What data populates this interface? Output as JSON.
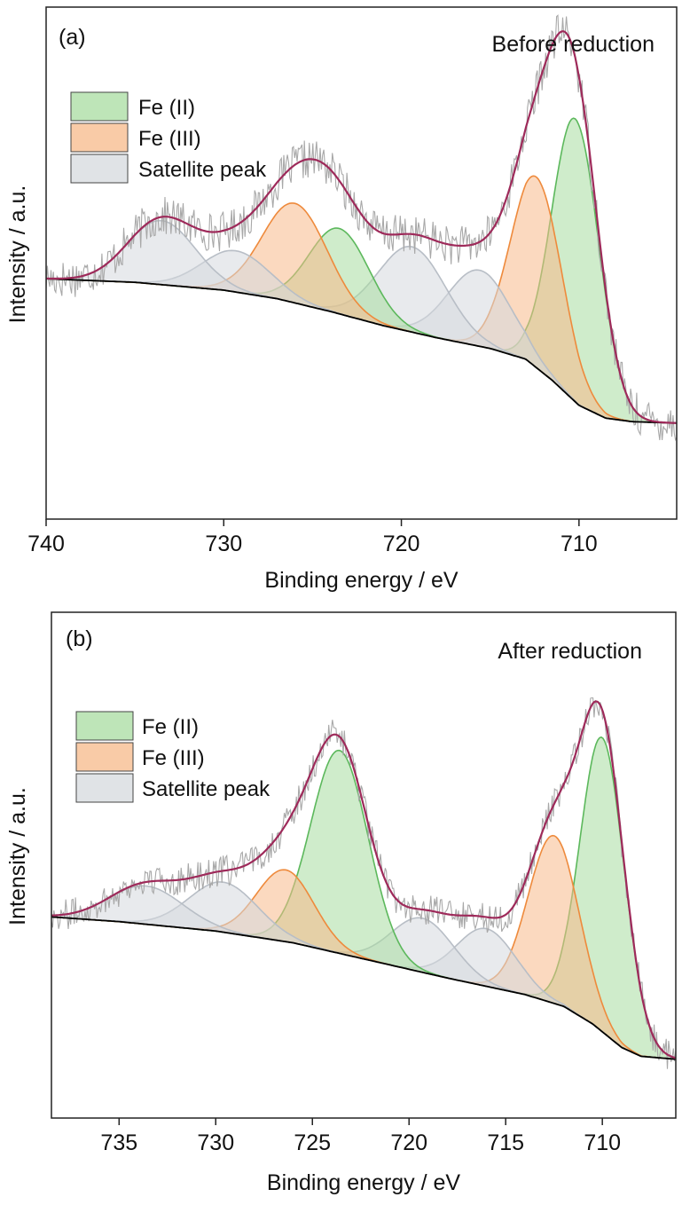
{
  "colors": {
    "fe2_fill": "#a8dca0",
    "fe2_stroke": "#5cb85c",
    "fe3_fill": "#f7b98a",
    "fe3_stroke": "#ee8a3c",
    "sat_fill": "#d5d9de",
    "sat_stroke": "#b8bec6",
    "envelope": "#9e2a5a",
    "raw": "#a8a8a8",
    "baseline": "#000000"
  },
  "chart_data": [
    {
      "type": "line",
      "panel_label": "(a)",
      "annotation": "Before reduction",
      "xlabel": "Binding energy / eV",
      "ylabel": "Intensity / a.u.",
      "xlim": [
        740,
        704.5
      ],
      "x_reversed": true,
      "xticks": [
        740,
        730,
        720,
        710
      ],
      "ylim": [
        0,
        1
      ],
      "grid": false,
      "legend_position": "top-left",
      "legend": [
        {
          "label": "Fe (II)",
          "kind": "fe2"
        },
        {
          "label": "Fe (III)",
          "kind": "fe3"
        },
        {
          "label": "Satellite peak",
          "kind": "sat"
        }
      ],
      "baseline": {
        "x": [
          740,
          735,
          730,
          727,
          724,
          721,
          718,
          715,
          713,
          711.5,
          710,
          708.5,
          707,
          704.5
        ],
        "y": [
          0.338,
          0.333,
          0.322,
          0.31,
          0.292,
          0.272,
          0.255,
          0.24,
          0.225,
          0.195,
          0.16,
          0.142,
          0.137,
          0.135
        ]
      },
      "peaks": [
        {
          "kind": "fe2",
          "center": 710.2,
          "height": 0.398,
          "fwhm": 3.1
        },
        {
          "kind": "fe3",
          "center": 712.4,
          "height": 0.268,
          "fwhm": 3.4
        },
        {
          "kind": "sat",
          "center": 715.6,
          "height": 0.107,
          "fwhm": 4.2
        },
        {
          "kind": "sat",
          "center": 719.4,
          "height": 0.12,
          "fwhm": 4.5
        },
        {
          "kind": "fe2",
          "center": 723.5,
          "height": 0.12,
          "fwhm": 4.0
        },
        {
          "kind": "fe3",
          "center": 726.0,
          "height": 0.14,
          "fwhm": 4.3
        },
        {
          "kind": "sat",
          "center": 729.3,
          "height": 0.058,
          "fwhm": 4.5
        },
        {
          "kind": "sat",
          "center": 733.5,
          "height": 0.09,
          "fwhm": 4.5
        }
      ],
      "noise_amplitude": 0.028
    },
    {
      "type": "line",
      "panel_label": "(b)",
      "annotation": "After reduction",
      "xlabel": "Binding energy / eV",
      "ylabel": "Intensity / a.u.",
      "xlim": [
        738.5,
        706.2
      ],
      "x_reversed": true,
      "xticks": [
        735,
        730,
        725,
        720,
        715,
        710
      ],
      "ylim": [
        0,
        1
      ],
      "grid": false,
      "legend_position": "top-left",
      "legend": [
        {
          "label": "Fe (II)",
          "kind": "fe2"
        },
        {
          "label": "Fe (III)",
          "kind": "fe3"
        },
        {
          "label": "Satellite peak",
          "kind": "sat"
        }
      ],
      "baseline": {
        "x": [
          738.5,
          735,
          730,
          726,
          722,
          718,
          714,
          712,
          710.5,
          709,
          708,
          706.2
        ],
        "y": [
          0.342,
          0.334,
          0.318,
          0.298,
          0.268,
          0.238,
          0.21,
          0.19,
          0.16,
          0.12,
          0.105,
          0.1
        ]
      },
      "peaks": [
        {
          "kind": "fe2",
          "center": 710.0,
          "height": 0.5,
          "fwhm": 2.7
        },
        {
          "kind": "fe3",
          "center": 712.5,
          "height": 0.285,
          "fwhm": 3.1
        },
        {
          "kind": "sat",
          "center": 716.0,
          "height": 0.098,
          "fwhm": 3.6
        },
        {
          "kind": "sat",
          "center": 719.3,
          "height": 0.092,
          "fwhm": 3.8
        },
        {
          "kind": "fe2",
          "center": 723.6,
          "height": 0.345,
          "fwhm": 3.5
        },
        {
          "kind": "fe3",
          "center": 726.4,
          "height": 0.122,
          "fwhm": 3.5
        },
        {
          "kind": "sat",
          "center": 729.6,
          "height": 0.085,
          "fwhm": 4.2
        },
        {
          "kind": "sat",
          "center": 733.6,
          "height": 0.065,
          "fwhm": 4.5
        }
      ],
      "noise_amplitude": 0.026
    }
  ]
}
